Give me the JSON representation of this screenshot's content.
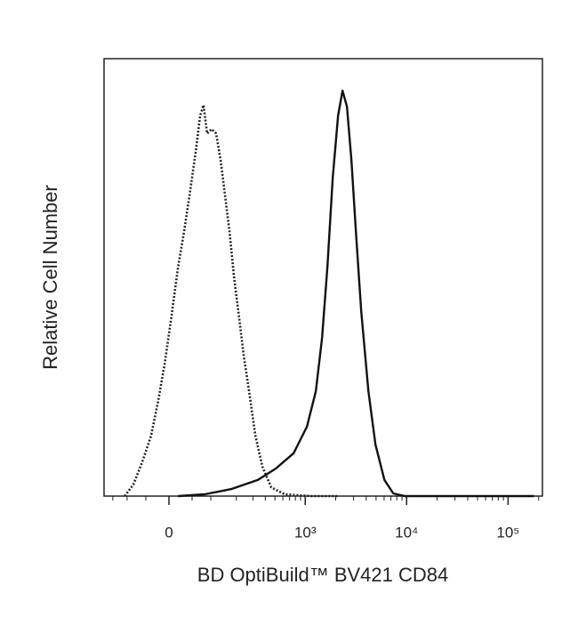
{
  "chart_data": {
    "type": "histogram-overlay",
    "x_label": "BD OptiBuild™ BV421 CD84",
    "y_label": "Relative Cell Number",
    "xscale": "biexponential",
    "xlim": [
      -188,
      218000
    ],
    "ylim": [
      0,
      100
    ],
    "xticks": [
      0,
      {
        "value": 1000,
        "label": "10³"
      },
      {
        "value": 10000,
        "label": "10⁴"
      },
      {
        "value": 100000,
        "label": "10⁵"
      }
    ],
    "xminorticks": [
      -150,
      -100,
      -50,
      50,
      100,
      200,
      300,
      400,
      500,
      600,
      700,
      800,
      900,
      2000,
      3000,
      4000,
      5000,
      6000,
      7000,
      8000,
      9000,
      20000,
      30000,
      40000,
      50000,
      60000,
      70000,
      80000,
      90000,
      200000
    ],
    "series": [
      {
        "style": "dotted",
        "color": "#222222",
        "x": [
          -108,
          -82,
          -59,
          -38,
          -22,
          -9,
          4,
          19,
          32,
          44,
          59,
          70,
          79,
          89,
          103,
          117,
          133,
          150,
          168,
          188,
          210,
          240,
          273,
          317,
          374,
          460,
          625,
          1151,
          2112
        ],
        "values": [
          0,
          2.6,
          7.7,
          13.8,
          22,
          30.1,
          40.2,
          52.4,
          60.6,
          68.7,
          78.9,
          87,
          89.4,
          82.9,
          83.9,
          82.9,
          76.8,
          68.7,
          60.6,
          50.4,
          42.3,
          32.1,
          24,
          13.8,
          6.7,
          2,
          0.4,
          0,
          0
        ]
      },
      {
        "style": "solid",
        "color": "#111111",
        "x": [
          19,
          82,
          176,
          337,
          510,
          767,
          1040,
          1274,
          1468,
          1657,
          1871,
          2112,
          2336,
          2584,
          2861,
          3164,
          3572,
          4200,
          4932,
          6038,
          7389,
          9610,
          180000
        ],
        "values": [
          0,
          0.4,
          1.6,
          3.7,
          6.3,
          9.8,
          15.9,
          24,
          36.2,
          52.4,
          72.8,
          87,
          92.7,
          89,
          76.8,
          60.6,
          42.3,
          24,
          11.8,
          3.7,
          0.6,
          0,
          0
        ]
      }
    ]
  }
}
